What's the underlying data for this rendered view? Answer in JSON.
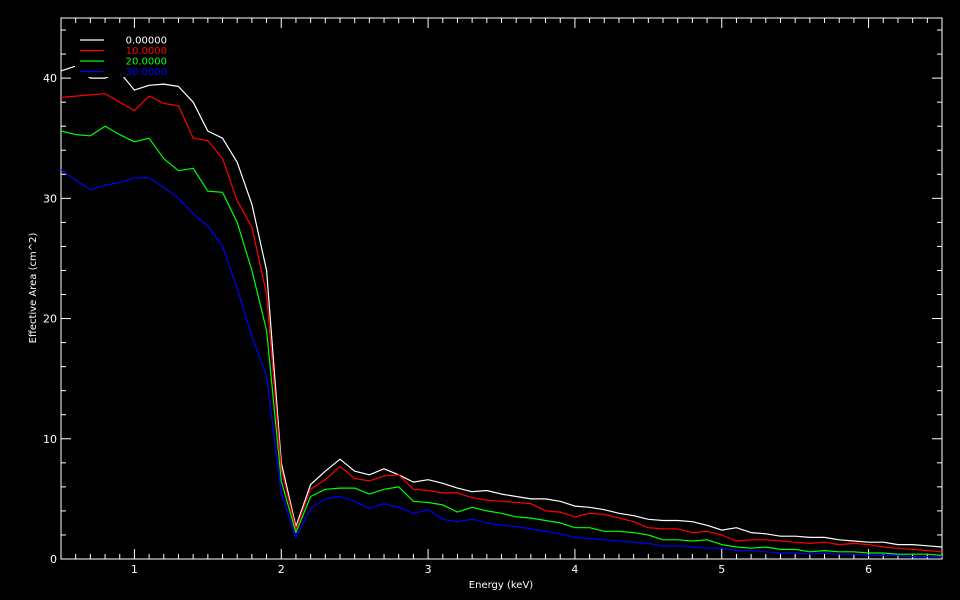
{
  "chart_data": {
    "type": "line",
    "xlabel": "Energy (keV)",
    "ylabel": "Effective Area (cm^2)",
    "xlim": [
      0.5,
      6.5
    ],
    "ylim": [
      0,
      45
    ],
    "xticks": [
      1,
      2,
      3,
      4,
      5,
      6
    ],
    "yticks": [
      0,
      10,
      20,
      30,
      40
    ],
    "legend_position": "top-left",
    "x": [
      0.5,
      0.6,
      0.7,
      0.8,
      0.9,
      1.0,
      1.1,
      1.2,
      1.3,
      1.4,
      1.5,
      1.6,
      1.7,
      1.8,
      1.9,
      2.0,
      2.1,
      2.2,
      2.3,
      2.4,
      2.5,
      2.6,
      2.7,
      2.8,
      2.9,
      3.0,
      3.1,
      3.2,
      3.3,
      3.4,
      3.5,
      3.6,
      3.7,
      3.8,
      3.9,
      4.0,
      4.1,
      4.2,
      4.3,
      4.4,
      4.5,
      4.6,
      4.7,
      4.8,
      4.9,
      5.0,
      5.1,
      5.2,
      5.3,
      5.4,
      5.5,
      5.6,
      5.7,
      5.8,
      5.9,
      6.0,
      6.1,
      6.2,
      6.3,
      6.4,
      6.5
    ],
    "series": [
      {
        "name": "0.00000",
        "color": "#ffffff",
        "values": [
          40.6,
          41.0,
          40.0,
          40.0,
          40.5,
          39.0,
          39.4,
          39.5,
          39.3,
          38.0,
          35.6,
          35.0,
          33.0,
          29.5,
          24.0,
          8.0,
          2.7,
          6.2,
          7.3,
          8.3,
          7.3,
          7.0,
          7.5,
          7.0,
          6.4,
          6.6,
          6.3,
          5.9,
          5.6,
          5.7,
          5.4,
          5.2,
          5.0,
          5.0,
          4.8,
          4.4,
          4.3,
          4.1,
          3.8,
          3.6,
          3.3,
          3.2,
          3.2,
          3.1,
          2.8,
          2.4,
          2.6,
          2.2,
          2.1,
          1.9,
          1.9,
          1.8,
          1.8,
          1.6,
          1.5,
          1.4,
          1.4,
          1.2,
          1.2,
          1.1,
          1.0
        ]
      },
      {
        "name": "10.0000",
        "color": "#ff0000",
        "values": [
          38.4,
          38.5,
          38.6,
          38.7,
          38.0,
          37.3,
          38.5,
          37.9,
          37.7,
          35.0,
          34.8,
          33.3,
          29.8,
          27.6,
          22.0,
          7.5,
          2.5,
          5.8,
          6.6,
          7.7,
          6.7,
          6.5,
          6.9,
          7.0,
          5.8,
          5.7,
          5.5,
          5.5,
          5.1,
          4.9,
          4.8,
          4.7,
          4.6,
          4.0,
          3.9,
          3.5,
          3.8,
          3.7,
          3.4,
          3.1,
          2.6,
          2.5,
          2.5,
          2.2,
          2.3,
          2.0,
          1.5,
          1.6,
          1.6,
          1.5,
          1.4,
          1.3,
          1.4,
          1.2,
          1.3,
          1.2,
          1.0,
          0.9,
          0.8,
          0.7,
          0.6
        ]
      },
      {
        "name": "20.0000",
        "color": "#00ff00",
        "values": [
          35.6,
          35.3,
          35.2,
          36.0,
          35.3,
          34.7,
          35.0,
          33.3,
          32.3,
          32.5,
          30.6,
          30.5,
          28.0,
          24.0,
          19.0,
          6.5,
          2.2,
          5.2,
          5.8,
          5.9,
          5.9,
          5.4,
          5.8,
          6.0,
          4.8,
          4.7,
          4.5,
          3.9,
          4.3,
          4.0,
          3.8,
          3.5,
          3.4,
          3.2,
          3.0,
          2.6,
          2.6,
          2.3,
          2.3,
          2.2,
          2.0,
          1.6,
          1.6,
          1.5,
          1.6,
          1.2,
          1.0,
          0.9,
          1.0,
          0.8,
          0.8,
          0.6,
          0.7,
          0.6,
          0.6,
          0.5,
          0.5,
          0.4,
          0.4,
          0.4,
          0.3
        ]
      },
      {
        "name": "30.0000",
        "color": "#0000ff",
        "values": [
          32.4,
          31.5,
          30.7,
          31.1,
          31.3,
          31.7,
          31.7,
          30.9,
          30.0,
          28.7,
          27.7,
          26.0,
          22.5,
          18.5,
          15.2,
          5.5,
          1.8,
          4.2,
          5.0,
          5.2,
          4.8,
          4.2,
          4.6,
          4.3,
          3.8,
          4.1,
          3.3,
          3.1,
          3.3,
          3.0,
          2.8,
          2.7,
          2.5,
          2.3,
          2.1,
          1.8,
          1.7,
          1.6,
          1.5,
          1.4,
          1.3,
          1.1,
          1.1,
          1.0,
          0.9,
          0.9,
          0.7,
          0.7,
          0.6,
          0.5,
          0.5,
          0.4,
          0.5,
          0.4,
          0.4,
          0.3,
          0.3,
          0.3,
          0.2,
          0.2,
          0.2
        ]
      }
    ]
  }
}
